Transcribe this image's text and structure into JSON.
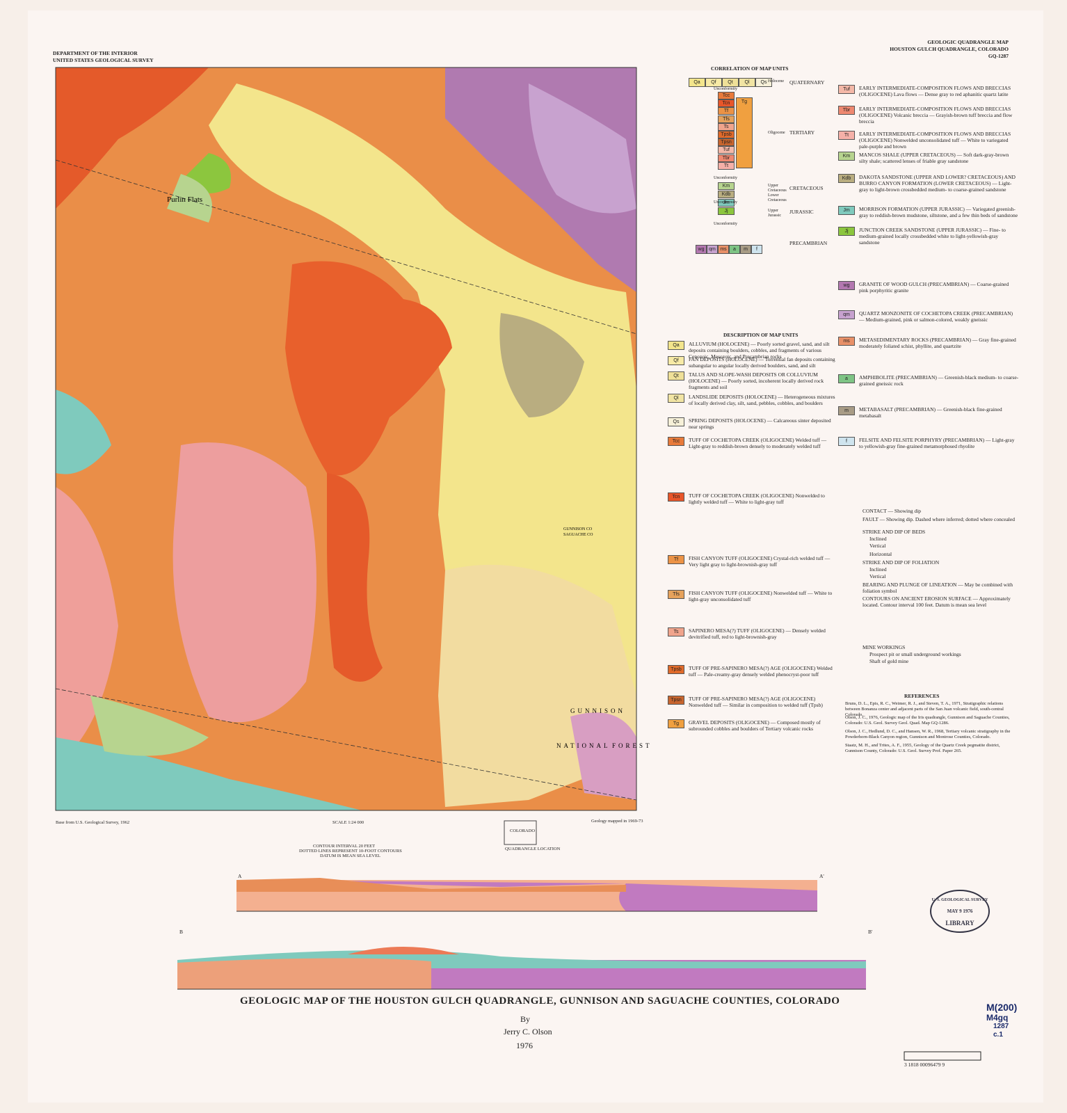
{
  "header": {
    "agency": [
      "DEPARTMENT OF THE INTERIOR",
      "UNITED STATES GEOLOGICAL SURVEY"
    ],
    "series": [
      "GEOLOGIC QUADRANGLE MAP",
      "HOUSTON GULCH QUADRANGLE, COLORADO",
      "GQ-1287"
    ]
  },
  "map_labels": [
    "Purlin Flats",
    "GUNNISON",
    "NATIONAL",
    "FOREST",
    "GUNNISON CO",
    "SAGUACHE CO"
  ],
  "correlation": {
    "title": "CORRELATION OF MAP UNITS",
    "systems": [
      "QUATERNARY",
      "TERTIARY",
      "CRETACEOUS",
      "JURASSIC",
      "PRECAMBRIAN"
    ],
    "series": [
      "Holocene",
      "Oligocene",
      "Upper Cretaceous",
      "Lower Cretaceous",
      "Upper Jurassic"
    ],
    "unconformity": "Unconformity"
  },
  "description": {
    "title": "DESCRIPTION OF MAP UNITS",
    "units": [
      {
        "code": "Qa",
        "name": "ALLUVIUM (HOLOCENE)",
        "text": "— Poorly sorted gravel, sand, and silt deposits containing boulders, cobbles, and fragments of various Cenozoic, Mesozoic, and Precambrian rocks",
        "color": "#f3e58c"
      },
      {
        "code": "Qf",
        "name": "FAN DEPOSITS (HOLOCENE)",
        "text": "— Torrential fan deposits containing subangular to angular locally derived boulders, sand, and silt",
        "color": "#f7eaa6"
      },
      {
        "code": "Qt",
        "name": "TALUS AND SLOPE-WASH DEPOSITS OR COLLUVIUM (HOLOCENE)",
        "text": "— Poorly sorted, incoherent locally derived rock fragments and soil",
        "color": "#efe098"
      },
      {
        "code": "Ql",
        "name": "LANDSLIDE DEPOSITS (HOLOCENE)",
        "text": "— Heterogeneous mixtures of locally derived clay, silt, sand, pebbles, cobbles, and boulders",
        "color": "#f1e4a3"
      },
      {
        "code": "Qs",
        "name": "SPRING DEPOSITS (HOLOCENE)",
        "text": "— Calcareous sinter deposited near springs",
        "color": "#f6f0d8"
      },
      {
        "code": "Tcc",
        "name": "TUFF OF COCHETOPA CREEK (OLIGOCENE)",
        "text": "Welded tuff — Light-gray to reddish-brown densely to moderately welded tuff",
        "color": "#e87a3a"
      },
      {
        "code": "Tcn",
        "name": "TUFF OF COCHETOPA CREEK (OLIGOCENE)",
        "text": "Nonwelded to lightly welded tuff — White to light-gray tuff",
        "color": "#e8562a"
      },
      {
        "code": "Tf",
        "name": "FISH CANYON TUFF (OLIGOCENE)",
        "text": "Crystal-rich welded tuff — Very light gray to light-brownish-gray tuff",
        "color": "#ec9346"
      },
      {
        "code": "Tfs",
        "name": "FISH CANYON TUFF (OLIGOCENE)",
        "text": "Nonwelded tuff — White to light-gray unconsolidated tuff",
        "color": "#e6a25c"
      },
      {
        "code": "Ts",
        "name": "SAPINERO MESA(?) TUFF (OLIGOCENE)",
        "text": "— Densely welded devitrified tuff, red to light-brownish-gray",
        "color": "#f0a48c"
      },
      {
        "code": "Tpsb",
        "name": "TUFF OF PRE-SAPINERO MESA(?) AGE (OLIGOCENE)",
        "text": "Welded tuff — Pale-creamy-gray densely welded phenocryst-poor tuff",
        "color": "#e06a2a"
      },
      {
        "code": "Tpsn",
        "name": "TUFF OF PRE-SAPINERO MESA(?) AGE (OLIGOCENE)",
        "text": "Nonwelded tuff — Similar in composition to welded tuff (Tpsb)",
        "color": "#c8652e"
      },
      {
        "code": "Tg",
        "name": "GRAVEL DEPOSITS (OLIGOCENE)",
        "text": "— Composed mostly of subrounded cobbles and boulders of Tertiary volcanic rocks",
        "color": "#f0a040"
      },
      {
        "code": "Tuf",
        "name": "EARLY INTERMEDIATE-COMPOSITION FLOWS AND BRECCIAS (OLIGOCENE)",
        "text": "Lava flows — Dense gray to red aphanitic quartz latite",
        "color": "#f4b8a8"
      },
      {
        "code": "Tbr",
        "name": "EARLY INTERMEDIATE-COMPOSITION FLOWS AND BRECCIAS (OLIGOCENE)",
        "text": "Volcanic breccia — Grayish-brown tuff breccia and flow breccia",
        "color": "#ee8870"
      },
      {
        "code": "Tt",
        "name": "EARLY INTERMEDIATE-COMPOSITION FLOWS AND BRECCIAS (OLIGOCENE)",
        "text": "Nonwelded unconsolidated tuff — White to variegated pale-purple and brown",
        "color": "#f5b0a8"
      },
      {
        "code": "Km",
        "name": "MANCOS SHALE (UPPER CRETACEOUS)",
        "text": "— Soft dark-gray-brown silty shale; scattered lenses of friable gray sandstone",
        "color": "#b7d48f"
      },
      {
        "code": "Kdb",
        "name": "DAKOTA SANDSTONE (UPPER AND LOWER? CRETACEOUS) AND BURRO CANYON FORMATION (LOWER CRETACEOUS)",
        "text": "— Light-gray to light-brown crossbedded medium- to coarse-grained sandstone",
        "color": "#b9ad80"
      },
      {
        "code": "Jm",
        "name": "MORRISON FORMATION (UPPER JURASSIC)",
        "text": "— Variegated greenish-gray to reddish-brown mudstone, siltstone, and a few thin beds of sandstone",
        "color": "#7fcabd"
      },
      {
        "code": "Jj",
        "name": "JUNCTION CREEK SANDSTONE (UPPER JURASSIC)",
        "text": "— Fine- to medium-grained locally crossbedded white to light-yellowish-gray sandstone",
        "color": "#8cc63e"
      },
      {
        "code": "wg",
        "name": "GRANITE OF WOOD GULCH (PRECAMBRIAN)",
        "text": "— Coarse-grained pink porphyritic granite",
        "color": "#b378b0"
      },
      {
        "code": "qm",
        "name": "QUARTZ MONZONITE OF COCHETOPA CREEK (PRECAMBRIAN)",
        "text": "— Medium-grained, pink or salmon-colored, weakly gneissic",
        "color": "#c7a2cf"
      },
      {
        "code": "ms",
        "name": "METASEDIMENTARY ROCKS (PRECAMBRIAN)",
        "text": "— Gray fine-grained moderately foliated schist, phyllite, and quartzite",
        "color": "#e89068"
      },
      {
        "code": "a",
        "name": "AMPHIBOLITE (PRECAMBRIAN)",
        "text": "— Greenish-black medium- to coarse-grained gneissic rock",
        "color": "#7ec485"
      },
      {
        "code": "m",
        "name": "METABASALT (PRECAMBRIAN)",
        "text": "— Greenish-black fine-grained metabasalt",
        "color": "#a89c86"
      },
      {
        "code": "f",
        "name": "FELSITE AND FELSITE PORPHYRY (PRECAMBRIAN)",
        "text": "— Light-gray to yellowish-gray fine-grained metamorphosed rhyolite",
        "color": "#cfe4ee"
      }
    ]
  },
  "symbols": [
    "CONTACT — Showing dip",
    "FAULT — Showing dip. Dashed where inferred; dotted where concealed",
    "STRIKE AND DIP OF BEDS",
    "Inclined",
    "Vertical",
    "Horizontal",
    "STRIKE AND DIP OF FOLIATION",
    "Inclined",
    "Vertical",
    "BEARING AND PLUNGE OF LINEATION — May be combined with foliation symbol",
    "CONTOURS ON ANCIENT EROSION SURFACE — Approximately located. Contour interval 100 feet. Datum is mean sea level",
    "MINE WORKINGS",
    "Prospect pit or small underground workings",
    "Shaft of gold mine"
  ],
  "references": {
    "title": "REFERENCES",
    "items": [
      "Bruns, D. L., Epis, R. C., Weimer, R. J., and Steven, T. A., 1971, Stratigraphic relations between Bonanza center and adjacent parts of the San Juan volcanic field, south-central Colorado.",
      "Olson, J. C., 1976, Geologic map of the Iris quadrangle, Gunnison and Saguache Counties, Colorado: U.S. Geol. Survey Geol. Quad. Map GQ-1286.",
      "Olson, J. C., Hedlund, D. C., and Hansen, W. R., 1968, Tertiary volcanic stratigraphy in the Powderhorn-Black Canyon region, Gunnison and Montrose Counties, Colorado.",
      "Staatz, M. H., and Trites, A. F., 1955, Geology of the Quartz Creek pegmatite district, Gunnison County, Colorado: U.S. Geol. Survey Prof. Paper 265."
    ]
  },
  "bottom": {
    "scale": "SCALE 1:24 000",
    "contour": "CONTOUR INTERVAL 20 FEET",
    "dotted": "DOTTED LINES REPRESENT 10-FOOT CONTOURS",
    "datum": "DATUM IS MEAN SEA LEVEL",
    "mapped": "Geology mapped in 1969-73",
    "location": "QUADRANGLE LOCATION",
    "state": "COLORADO",
    "base": "Base from U.S. Geological Survey, 1962"
  },
  "sections": {
    "labels": [
      "A",
      "A'",
      "B",
      "B'"
    ]
  },
  "footer": {
    "title": "GEOLOGIC MAP OF THE HOUSTON GULCH QUADRANGLE, GUNNISON AND SAGUACHE COUNTIES, COLORADO",
    "by": "By",
    "author": "Jerry C. Olson",
    "year": "1976"
  },
  "stamp": [
    "U. S. GEOLOGICAL SURVEY",
    "MAY 9 1976",
    "LIBRARY"
  ],
  "catalog": [
    "M(200)",
    "M4gq",
    "1287",
    "c.1"
  ],
  "barcode": "3 1818 00096479 9"
}
